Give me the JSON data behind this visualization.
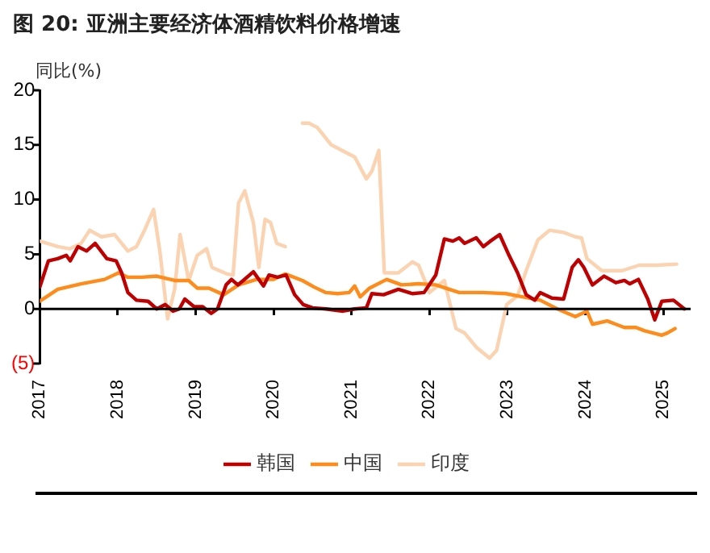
{
  "chart_data": {
    "type": "line",
    "title": "图 20: 亚洲主要经济体酒精饮料价格增速",
    "ylabel": "同比(%)",
    "xlim": [
      2017,
      2025.35
    ],
    "xticks": [
      2017,
      2018,
      2019,
      2020,
      2021,
      2022,
      2023,
      2024,
      2025
    ],
    "ylim": [
      -5,
      20
    ],
    "yticks": [
      {
        "value": -5,
        "label": "(5)"
      },
      0,
      5,
      10,
      15,
      20
    ],
    "grid": false,
    "ref_lines": [
      {
        "axis": "y",
        "value": 0,
        "color": "#000000"
      }
    ],
    "legend": "bottom",
    "marker": "none",
    "line_style": "solid",
    "series": [
      {
        "name": "韩国",
        "color": "#c00000",
        "x": [
          2017.0,
          2017.11,
          2017.23,
          2017.34,
          2017.39,
          2017.49,
          2017.6,
          2017.71,
          2017.86,
          2017.98,
          2018.05,
          2018.13,
          2018.24,
          2018.39,
          2018.5,
          2018.61,
          2018.71,
          2018.79,
          2018.86,
          2018.98,
          2019.09,
          2019.2,
          2019.28,
          2019.39,
          2019.46,
          2019.54,
          2019.61,
          2019.74,
          2019.87,
          2019.94,
          2020.05,
          2020.16,
          2020.27,
          2020.38,
          2020.5,
          2020.67,
          2020.89,
          2021.04,
          2021.19,
          2021.26,
          2021.41,
          2021.6,
          2021.78,
          2021.93,
          2022.08,
          2022.19,
          2022.3,
          2022.38,
          2022.45,
          2022.6,
          2022.69,
          2022.78,
          2022.9,
          2023.02,
          2023.13,
          2023.24,
          2023.35,
          2023.42,
          2023.57,
          2023.72,
          2023.83,
          2023.91,
          2023.98,
          2024.09,
          2024.24,
          2024.39,
          2024.5,
          2024.57,
          2024.68,
          2024.8,
          2024.89,
          2024.98,
          2025.13,
          2025.27
        ],
        "values": [
          2.0,
          4.4,
          4.6,
          4.9,
          4.4,
          5.7,
          5.3,
          6.0,
          4.6,
          4.4,
          3.3,
          1.5,
          0.8,
          0.7,
          0.0,
          0.4,
          -0.2,
          0.0,
          0.9,
          0.2,
          0.2,
          -0.4,
          0.0,
          2.2,
          2.7,
          2.2,
          2.6,
          3.4,
          2.1,
          3.1,
          2.9,
          3.1,
          1.3,
          0.4,
          0.1,
          0.0,
          -0.2,
          0.0,
          0.1,
          1.4,
          1.3,
          1.8,
          1.4,
          1.5,
          3.1,
          6.4,
          6.2,
          6.5,
          6.0,
          6.5,
          5.7,
          6.2,
          6.8,
          4.9,
          3.3,
          1.3,
          0.8,
          1.5,
          1.0,
          0.9,
          3.8,
          4.5,
          3.8,
          2.2,
          3.0,
          2.4,
          2.6,
          2.3,
          2.7,
          0.9,
          -1.0,
          0.7,
          0.8,
          0.0
        ]
      },
      {
        "name": "中国",
        "color": "#ff8c1a",
        "x": [
          2017.0,
          2017.23,
          2017.53,
          2017.83,
          2018.01,
          2018.13,
          2018.31,
          2018.5,
          2018.73,
          2018.91,
          2019.02,
          2019.17,
          2019.36,
          2019.55,
          2019.78,
          2020.0,
          2020.15,
          2020.37,
          2020.52,
          2020.67,
          2020.82,
          2020.97,
          2021.04,
          2021.11,
          2021.23,
          2021.45,
          2021.64,
          2021.86,
          2022.08,
          2022.38,
          2022.68,
          2022.98,
          2023.2,
          2023.42,
          2023.64,
          2023.87,
          2024.02,
          2024.09,
          2024.28,
          2024.5,
          2024.65,
          2024.76,
          2024.98,
          2025.05,
          2025.15
        ],
        "values": [
          0.7,
          1.8,
          2.3,
          2.7,
          3.3,
          2.9,
          2.9,
          3.0,
          2.6,
          2.6,
          1.9,
          1.9,
          1.3,
          2.2,
          2.7,
          2.7,
          3.2,
          2.6,
          2.0,
          1.5,
          1.4,
          1.5,
          2.1,
          1.1,
          1.9,
          2.7,
          2.2,
          2.3,
          2.2,
          1.5,
          1.5,
          1.4,
          1.1,
          0.8,
          0.0,
          -0.7,
          -0.2,
          -1.4,
          -1.1,
          -1.7,
          -1.7,
          -2.0,
          -2.4,
          -2.2,
          -1.8
        ]
      },
      {
        "name": "印度",
        "color": "#fbd3b0",
        "x": [
          2017.0,
          2017.23,
          2017.38,
          2017.53,
          2017.64,
          2017.79,
          2017.96,
          2018.13,
          2018.24,
          2018.35,
          2018.46,
          2018.54,
          2018.64,
          2018.73,
          2018.8,
          2018.91,
          2019.02,
          2019.14,
          2019.21,
          2019.4,
          2019.48,
          2019.55,
          2019.63,
          2019.74,
          2019.81,
          2019.89,
          2019.96,
          2020.04,
          2020.15,
          2020.25,
          2020.37,
          2020.45,
          2020.56,
          2020.74,
          2020.93,
          2021.04,
          2021.19,
          2021.26,
          2021.35,
          2021.42,
          2021.6,
          2021.78,
          2021.86,
          2022.0,
          2022.19,
          2022.34,
          2022.45,
          2022.6,
          2022.77,
          2022.86,
          2022.99,
          2023.13,
          2023.24,
          2023.39,
          2023.54,
          2023.72,
          2023.87,
          2023.95,
          2024.02,
          2024.21,
          2024.47,
          2024.69,
          2024.91,
          2025.17
        ],
        "values": [
          6.2,
          5.7,
          5.5,
          6.0,
          7.2,
          6.6,
          6.8,
          5.3,
          5.7,
          7.3,
          9.1,
          5.3,
          -0.9,
          1.8,
          6.8,
          2.6,
          4.9,
          5.5,
          3.8,
          3.2,
          3.1,
          9.7,
          10.8,
          7.9,
          3.8,
          8.2,
          7.9,
          6.0,
          5.7,
          null,
          17.0,
          17.0,
          16.6,
          15.0,
          14.3,
          13.9,
          11.9,
          12.6,
          14.5,
          3.3,
          3.3,
          4.3,
          4.0,
          1.5,
          2.6,
          -1.8,
          -2.2,
          -3.5,
          -4.5,
          -3.8,
          0.4,
          1.2,
          3.5,
          6.3,
          7.2,
          7.0,
          6.6,
          6.5,
          4.6,
          3.5,
          3.5,
          4.0,
          4.0,
          4.1
        ]
      }
    ]
  }
}
